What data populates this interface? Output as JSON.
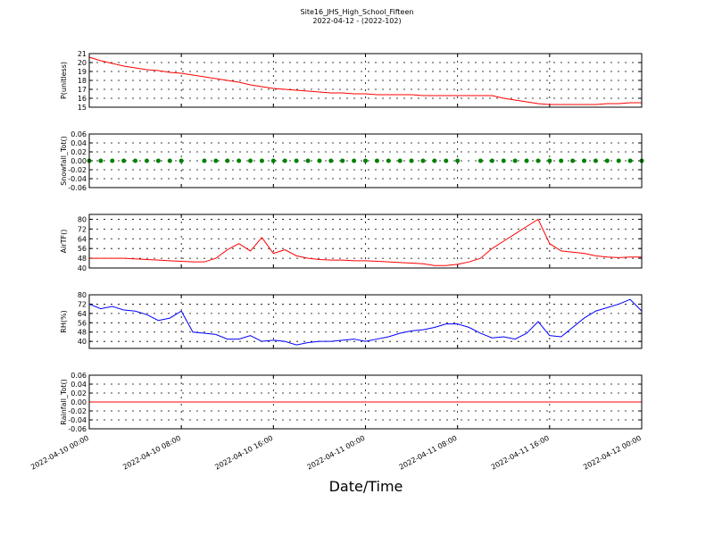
{
  "chart_data": [
    {
      "type": "line",
      "title": "Site16_JHS_High_School_Fifteen",
      "subtitle": "2022-04-12 - (2022-102)",
      "ylabel": "P(unitless)",
      "color": "#ff0000",
      "xlim": [
        "2022-04-10 00:00",
        "2022-04-12 00:00"
      ],
      "ylim": [
        15,
        21
      ],
      "yticks": [
        15,
        16,
        17,
        18,
        19,
        20,
        21
      ],
      "grid": true,
      "x": [
        "2022-04-10 00:00",
        "2022-04-10 01:00",
        "2022-04-10 02:00",
        "2022-04-10 03:00",
        "2022-04-10 04:00",
        "2022-04-10 05:00",
        "2022-04-10 06:00",
        "2022-04-10 07:00",
        "2022-04-10 08:00",
        "2022-04-10 09:00",
        "2022-04-10 10:00",
        "2022-04-10 11:00",
        "2022-04-10 12:00",
        "2022-04-10 13:00",
        "2022-04-10 14:00",
        "2022-04-10 15:00",
        "2022-04-10 16:00",
        "2022-04-10 17:00",
        "2022-04-10 18:00",
        "2022-04-10 19:00",
        "2022-04-10 20:00",
        "2022-04-10 21:00",
        "2022-04-10 22:00",
        "2022-04-10 23:00",
        "2022-04-11 00:00",
        "2022-04-11 01:00",
        "2022-04-11 02:00",
        "2022-04-11 03:00",
        "2022-04-11 04:00",
        "2022-04-11 05:00",
        "2022-04-11 06:00",
        "2022-04-11 07:00",
        "2022-04-11 08:00",
        "2022-04-11 09:00",
        "2022-04-11 10:00",
        "2022-04-11 11:00",
        "2022-04-11 12:00",
        "2022-04-11 13:00",
        "2022-04-11 14:00",
        "2022-04-11 15:00",
        "2022-04-11 16:00",
        "2022-04-11 17:00",
        "2022-04-11 18:00",
        "2022-04-11 19:00",
        "2022-04-11 20:00",
        "2022-04-11 21:00",
        "2022-04-11 22:00",
        "2022-04-11 23:00",
        "2022-04-12 00:00"
      ],
      "values": [
        20.6,
        20.2,
        19.9,
        19.6,
        19.4,
        19.2,
        19.1,
        18.9,
        18.8,
        18.6,
        18.4,
        18.2,
        18.0,
        17.8,
        17.5,
        17.3,
        17.1,
        17.0,
        16.9,
        16.8,
        16.7,
        16.6,
        16.6,
        16.5,
        16.5,
        16.4,
        16.4,
        16.4,
        16.4,
        16.3,
        16.3,
        16.3,
        16.3,
        16.3,
        16.3,
        16.3,
        16.0,
        15.8,
        15.6,
        15.4,
        15.3,
        15.3,
        15.3,
        15.3,
        15.3,
        15.4,
        15.4,
        15.5,
        15.5
      ]
    },
    {
      "type": "scatter",
      "ylabel": "Snowfall_Tot()",
      "color": "#008000",
      "xlim": [
        "2022-04-10 00:00",
        "2022-04-12 00:00"
      ],
      "ylim": [
        -0.06,
        0.06
      ],
      "yticks": [
        {
          "value": -0.06,
          "label": "-0.06"
        },
        {
          "value": -0.04,
          "label": "-0.04"
        },
        {
          "value": -0.02,
          "label": "-0.02"
        },
        {
          "value": 0,
          "label": "0.00"
        },
        {
          "value": 0.02,
          "label": "0.02"
        },
        {
          "value": 0.04,
          "label": "0.04"
        },
        {
          "value": 0.06,
          "label": "0.06"
        }
      ],
      "grid": true,
      "x": [
        "2022-04-10 00:00",
        "2022-04-10 01:00",
        "2022-04-10 02:00",
        "2022-04-10 03:00",
        "2022-04-10 04:00",
        "2022-04-10 05:00",
        "2022-04-10 06:00",
        "2022-04-10 07:00",
        "2022-04-10 08:00",
        "2022-04-10 09:00",
        "2022-04-10 10:00",
        "2022-04-10 11:00",
        "2022-04-10 12:00",
        "2022-04-10 13:00",
        "2022-04-10 14:00",
        "2022-04-10 15:00",
        "2022-04-10 16:00",
        "2022-04-10 17:00",
        "2022-04-10 18:00",
        "2022-04-10 19:00",
        "2022-04-10 20:00",
        "2022-04-10 21:00",
        "2022-04-10 22:00",
        "2022-04-10 23:00",
        "2022-04-11 00:00",
        "2022-04-11 01:00",
        "2022-04-11 02:00",
        "2022-04-11 03:00",
        "2022-04-11 04:00",
        "2022-04-11 05:00",
        "2022-04-11 06:00",
        "2022-04-11 07:00",
        "2022-04-11 08:00",
        "2022-04-11 09:00",
        "2022-04-11 10:00",
        "2022-04-11 11:00",
        "2022-04-11 12:00",
        "2022-04-11 13:00",
        "2022-04-11 14:00",
        "2022-04-11 15:00",
        "2022-04-11 16:00",
        "2022-04-11 17:00",
        "2022-04-11 18:00",
        "2022-04-11 19:00",
        "2022-04-11 20:00",
        "2022-04-11 21:00",
        "2022-04-11 22:00",
        "2022-04-11 23:00",
        "2022-04-12 00:00"
      ],
      "values": [
        0,
        0,
        0,
        0,
        0,
        0,
        0,
        0,
        0,
        null,
        0,
        0,
        0,
        0,
        0,
        0,
        0,
        0,
        0,
        0,
        0,
        0,
        0,
        0,
        0,
        0,
        0,
        0,
        0,
        0,
        0,
        0,
        0,
        null,
        0,
        0,
        0,
        0,
        0,
        0,
        0,
        0,
        0,
        0,
        0,
        0,
        0,
        0,
        0
      ]
    },
    {
      "type": "line",
      "ylabel": "AirTF()",
      "color": "#ff0000",
      "xlim": [
        "2022-04-10 00:00",
        "2022-04-12 00:00"
      ],
      "ylim": [
        40,
        84
      ],
      "yticks": [
        40,
        48,
        56,
        64,
        72,
        80
      ],
      "grid": true,
      "x": [
        "2022-04-10 00:00",
        "2022-04-10 01:00",
        "2022-04-10 02:00",
        "2022-04-10 03:00",
        "2022-04-10 04:00",
        "2022-04-10 05:00",
        "2022-04-10 06:00",
        "2022-04-10 07:00",
        "2022-04-10 08:00",
        "2022-04-10 09:00",
        "2022-04-10 10:00",
        "2022-04-10 11:00",
        "2022-04-10 12:00",
        "2022-04-10 13:00",
        "2022-04-10 14:00",
        "2022-04-10 15:00",
        "2022-04-10 16:00",
        "2022-04-10 17:00",
        "2022-04-10 18:00",
        "2022-04-10 19:00",
        "2022-04-10 20:00",
        "2022-04-10 21:00",
        "2022-04-10 22:00",
        "2022-04-10 23:00",
        "2022-04-11 00:00",
        "2022-04-11 01:00",
        "2022-04-11 02:00",
        "2022-04-11 03:00",
        "2022-04-11 04:00",
        "2022-04-11 05:00",
        "2022-04-11 06:00",
        "2022-04-11 07:00",
        "2022-04-11 08:00",
        "2022-04-11 09:00",
        "2022-04-11 10:00",
        "2022-04-11 11:00",
        "2022-04-11 12:00",
        "2022-04-11 13:00",
        "2022-04-11 14:00",
        "2022-04-11 15:00",
        "2022-04-11 16:00",
        "2022-04-11 17:00",
        "2022-04-11 18:00",
        "2022-04-11 19:00",
        "2022-04-11 20:00",
        "2022-04-11 21:00",
        "2022-04-11 22:00",
        "2022-04-11 23:00",
        "2022-04-12 00:00"
      ],
      "values": [
        48,
        48,
        48,
        48,
        47.5,
        47,
        46.5,
        46,
        45.5,
        45,
        45,
        48,
        55,
        60,
        54,
        65,
        52,
        55,
        50,
        48,
        47,
        46.5,
        46.5,
        46,
        46,
        45.5,
        45,
        44.5,
        44,
        43.5,
        42,
        42,
        43,
        45,
        48,
        56,
        62,
        68,
        74,
        80,
        60,
        54,
        53,
        52,
        50,
        49,
        48.5,
        49,
        49
      ]
    },
    {
      "type": "line",
      "ylabel": "RH(%)",
      "color": "#0000ff",
      "xlim": [
        "2022-04-10 00:00",
        "2022-04-12 00:00"
      ],
      "ylim": [
        34,
        80
      ],
      "yticks": [
        40,
        48,
        56,
        64,
        72,
        80
      ],
      "grid": true,
      "x": [
        "2022-04-10 00:00",
        "2022-04-10 01:00",
        "2022-04-10 02:00",
        "2022-04-10 03:00",
        "2022-04-10 04:00",
        "2022-04-10 05:00",
        "2022-04-10 06:00",
        "2022-04-10 07:00",
        "2022-04-10 08:00",
        "2022-04-10 09:00",
        "2022-04-10 10:00",
        "2022-04-10 11:00",
        "2022-04-10 12:00",
        "2022-04-10 13:00",
        "2022-04-10 14:00",
        "2022-04-10 15:00",
        "2022-04-10 16:00",
        "2022-04-10 17:00",
        "2022-04-10 18:00",
        "2022-04-10 19:00",
        "2022-04-10 20:00",
        "2022-04-10 21:00",
        "2022-04-10 22:00",
        "2022-04-10 23:00",
        "2022-04-11 00:00",
        "2022-04-11 01:00",
        "2022-04-11 02:00",
        "2022-04-11 03:00",
        "2022-04-11 04:00",
        "2022-04-11 05:00",
        "2022-04-11 06:00",
        "2022-04-11 07:00",
        "2022-04-11 08:00",
        "2022-04-11 09:00",
        "2022-04-11 10:00",
        "2022-04-11 11:00",
        "2022-04-11 12:00",
        "2022-04-11 13:00",
        "2022-04-11 14:00",
        "2022-04-11 15:00",
        "2022-04-11 16:00",
        "2022-04-11 17:00",
        "2022-04-11 18:00",
        "2022-04-11 19:00",
        "2022-04-11 20:00",
        "2022-04-11 21:00",
        "2022-04-11 22:00",
        "2022-04-11 23:00",
        "2022-04-12 00:00"
      ],
      "values": [
        72,
        68,
        70,
        67,
        66,
        63,
        58,
        60,
        66,
        48,
        47,
        46,
        42,
        42,
        45,
        40,
        41,
        40,
        37,
        39,
        40,
        40,
        41,
        42,
        40,
        42,
        44,
        47,
        49,
        50,
        52,
        55,
        55,
        52,
        47,
        43,
        44,
        42,
        47,
        57,
        45,
        44,
        52,
        60,
        66,
        69,
        72,
        76,
        66
      ]
    },
    {
      "type": "line",
      "ylabel": "Rainfall_Tot()",
      "xlabel": "Date/Time",
      "color": "#ff0000",
      "xlim": [
        "2022-04-10 00:00",
        "2022-04-12 00:00"
      ],
      "xticks": [
        "2022-04-10 00:00",
        "2022-04-10 08:00",
        "2022-04-10 16:00",
        "2022-04-11 00:00",
        "2022-04-11 08:00",
        "2022-04-11 16:00",
        "2022-04-12 00:00"
      ],
      "ylim": [
        -0.06,
        0.06
      ],
      "yticks": [
        {
          "value": -0.06,
          "label": "-0.06"
        },
        {
          "value": -0.04,
          "label": "-0.04"
        },
        {
          "value": -0.02,
          "label": "-0.02"
        },
        {
          "value": 0,
          "label": "0.00"
        },
        {
          "value": 0.02,
          "label": "0.02"
        },
        {
          "value": 0.04,
          "label": "0.04"
        },
        {
          "value": 0.06,
          "label": "0.06"
        }
      ],
      "grid": true,
      "x": [
        "2022-04-10 00:00",
        "2022-04-10 01:00",
        "2022-04-10 02:00",
        "2022-04-10 03:00",
        "2022-04-10 04:00",
        "2022-04-10 05:00",
        "2022-04-10 06:00",
        "2022-04-10 07:00",
        "2022-04-10 08:00",
        "2022-04-10 09:00",
        "2022-04-10 10:00",
        "2022-04-10 11:00",
        "2022-04-10 12:00",
        "2022-04-10 13:00",
        "2022-04-10 14:00",
        "2022-04-10 15:00",
        "2022-04-10 16:00",
        "2022-04-10 17:00",
        "2022-04-10 18:00",
        "2022-04-10 19:00",
        "2022-04-10 20:00",
        "2022-04-10 21:00",
        "2022-04-10 22:00",
        "2022-04-10 23:00",
        "2022-04-11 00:00",
        "2022-04-11 01:00",
        "2022-04-11 02:00",
        "2022-04-11 03:00",
        "2022-04-11 04:00",
        "2022-04-11 05:00",
        "2022-04-11 06:00",
        "2022-04-11 07:00",
        "2022-04-11 08:00",
        "2022-04-11 09:00",
        "2022-04-11 10:00",
        "2022-04-11 11:00",
        "2022-04-11 12:00",
        "2022-04-11 13:00",
        "2022-04-11 14:00",
        "2022-04-11 15:00",
        "2022-04-11 16:00",
        "2022-04-11 17:00",
        "2022-04-11 18:00",
        "2022-04-11 19:00",
        "2022-04-11 20:00",
        "2022-04-11 21:00",
        "2022-04-11 22:00",
        "2022-04-11 23:00",
        "2022-04-12 00:00"
      ],
      "values": [
        0,
        0,
        0,
        0,
        0,
        0,
        0,
        0,
        0,
        0,
        0,
        0,
        0,
        0,
        0,
        0,
        0,
        0,
        0,
        0,
        0,
        0,
        0,
        0,
        0,
        0,
        0,
        0,
        0,
        0,
        0,
        0,
        0,
        0,
        0,
        0,
        0,
        0,
        0,
        0,
        0,
        0,
        0,
        0,
        0,
        0,
        0,
        0,
        0
      ]
    }
  ]
}
